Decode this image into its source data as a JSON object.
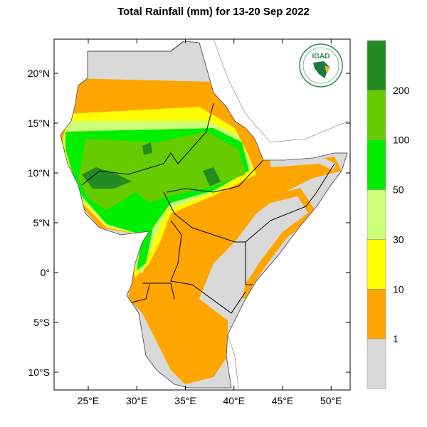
{
  "title": "Total Rainfall (mm) for 13-20 Sep 2022",
  "logo": {
    "text": "IGAD",
    "icon": "igad-logo-icon"
  },
  "lat_ticks": [
    {
      "label": "20°N",
      "value": 20
    },
    {
      "label": "15°N",
      "value": 15
    },
    {
      "label": "10°N",
      "value": 10
    },
    {
      "label": "5°N",
      "value": 5
    },
    {
      "label": "0°",
      "value": 0
    },
    {
      "label": "5°S",
      "value": -5
    },
    {
      "label": "10°S",
      "value": -10
    }
  ],
  "lon_ticks": [
    {
      "label": "25°E",
      "value": 25
    },
    {
      "label": "30°E",
      "value": 30
    },
    {
      "label": "35°E",
      "value": 35
    },
    {
      "label": "40°E",
      "value": 40
    },
    {
      "label": "45°E",
      "value": 45
    },
    {
      "label": "50°E",
      "value": 50
    }
  ],
  "colorbar": {
    "bins": [
      {
        "color": "#d9d9d9"
      },
      {
        "color": "#ffa500"
      },
      {
        "color": "#ffff00"
      },
      {
        "color": "#ccff77"
      },
      {
        "color": "#00ee00"
      },
      {
        "color": "#66cc00"
      },
      {
        "color": "#228b22"
      }
    ],
    "labels": [
      "1",
      "10",
      "30",
      "50",
      "100",
      "200"
    ]
  }
}
